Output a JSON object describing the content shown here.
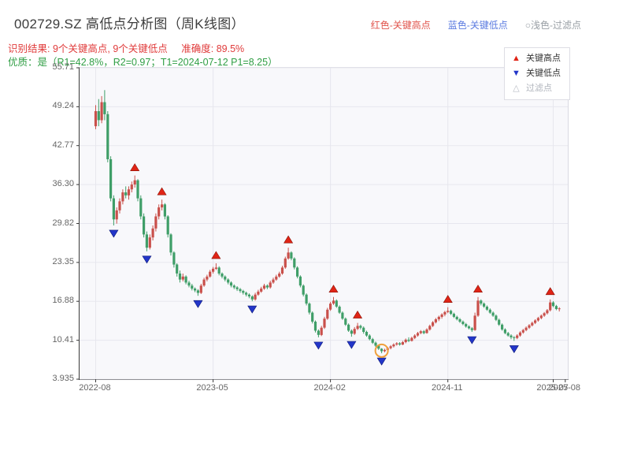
{
  "header": {
    "title": "002729.SZ 高低点分析图（周K线图）",
    "legend_top": [
      {
        "label": "红色-关键高点"
      },
      {
        "label": "蓝色-关键低点"
      },
      {
        "label": "○浅色-过滤点"
      }
    ],
    "result_text": "识别结果: 9个关键高点, 9个关键低点",
    "accuracy_text": "准确度: 89.5%",
    "quality_line": "优质：是（R1=42.8%，R2=0.97；T1=2024-07-12 P1=8.25）"
  },
  "chart_data": {
    "type": "candlestick",
    "title": "002729.SZ 高低点分析图（周K线图）",
    "xlabel": "",
    "ylabel": "",
    "ylim": [
      3.935,
      55.71
    ],
    "grid": true,
    "legend_position": "top-right",
    "y_ticks": [
      {
        "label": "55.71",
        "value": 55.71
      },
      {
        "label": "49.24",
        "value": 49.24
      },
      {
        "label": "42.77",
        "value": 42.77
      },
      {
        "label": "36.30",
        "value": 36.3
      },
      {
        "label": "29.82",
        "value": 29.82
      },
      {
        "label": "23.35",
        "value": 23.35
      },
      {
        "label": "16.88",
        "value": 16.88
      },
      {
        "label": "10.41",
        "value": 10.41
      },
      {
        "label": "3.935",
        "value": 3.935
      }
    ],
    "x_ticks": [
      {
        "label": "2022-08",
        "week": 0,
        "grid": true
      },
      {
        "label": "2023-05",
        "week": 39,
        "grid": true
      },
      {
        "label": "2024-02",
        "week": 78,
        "grid": true
      },
      {
        "label": "2024-11",
        "week": 117,
        "grid": true
      },
      {
        "label": "2025-07",
        "week": 152,
        "grid": true
      },
      {
        "label": "2025-08",
        "week": 156,
        "grid": false
      }
    ],
    "x_start_frac": 0.033,
    "x_step_frac": 0.006166,
    "candles": [
      [
        46,
        49.5,
        45.5,
        48.5
      ],
      [
        48.5,
        50.5,
        46,
        47
      ],
      [
        47,
        51,
        46.5,
        50
      ],
      [
        50,
        52,
        47,
        48
      ],
      [
        48,
        48.5,
        40,
        40.5
      ],
      [
        40.5,
        41,
        33.5,
        34
      ],
      [
        34,
        34.5,
        29.5,
        30.5
      ],
      [
        30.5,
        32.5,
        29.8,
        32
      ],
      [
        32,
        34,
        31.5,
        33.5
      ],
      [
        33.5,
        35.5,
        33,
        35
      ],
      [
        35,
        36,
        34,
        34.5
      ],
      [
        34.5,
        36,
        33.8,
        35.5
      ],
      [
        35.5,
        36.8,
        35,
        36.3
      ],
      [
        36.3,
        37.8,
        35.8,
        37
      ],
      [
        37,
        37.2,
        33.5,
        34
      ],
      [
        34,
        34.5,
        30.5,
        31
      ],
      [
        31,
        31.5,
        27.5,
        28
      ],
      [
        28,
        28.5,
        25.2,
        25.8
      ],
      [
        25.8,
        28,
        25.5,
        27.5
      ],
      [
        27.5,
        29.5,
        27,
        29
      ],
      [
        29,
        31.5,
        28.5,
        31
      ],
      [
        31,
        33,
        30.5,
        32.5
      ],
      [
        32.5,
        33.8,
        32,
        33
      ],
      [
        33,
        33.2,
        30.5,
        31
      ],
      [
        31,
        31.2,
        27.5,
        28
      ],
      [
        28,
        28.2,
        24.5,
        25
      ],
      [
        25,
        25.2,
        22.5,
        23
      ],
      [
        23,
        23.2,
        21,
        21.5
      ],
      [
        21.5,
        22,
        20,
        20.5
      ],
      [
        20.5,
        21.5,
        20.2,
        21
      ],
      [
        21,
        21.2,
        19.7,
        20
      ],
      [
        20,
        20.3,
        19.2,
        19.5
      ],
      [
        19.5,
        19.8,
        18.7,
        19
      ],
      [
        19,
        19.2,
        18.4,
        18.7
      ],
      [
        18.7,
        18.9,
        17.8,
        18.3
      ],
      [
        18.3,
        19.8,
        18.1,
        19.5
      ],
      [
        19.5,
        20.8,
        19.3,
        20.5
      ],
      [
        20.5,
        21.3,
        20.2,
        21
      ],
      [
        21,
        22.1,
        20.8,
        21.8
      ],
      [
        21.8,
        22.6,
        21.5,
        22.3
      ],
      [
        22.3,
        23.2,
        22.1,
        22.5
      ],
      [
        22.5,
        22.7,
        21.2,
        21.5
      ],
      [
        21.5,
        21.7,
        20.7,
        21
      ],
      [
        21,
        21.2,
        20.2,
        20.5
      ],
      [
        20.5,
        20.7,
        19.7,
        20
      ],
      [
        20,
        20.2,
        19.2,
        19.5
      ],
      [
        19.5,
        19.7,
        18.9,
        19.2
      ],
      [
        19.2,
        19.4,
        18.6,
        18.9
      ],
      [
        18.9,
        19.1,
        18.3,
        18.6
      ],
      [
        18.6,
        18.8,
        18,
        18.3
      ],
      [
        18.3,
        18.5,
        17.7,
        18
      ],
      [
        18,
        18.2,
        17.4,
        17.7
      ],
      [
        17.7,
        17.9,
        16.9,
        17.2
      ],
      [
        17.2,
        18.3,
        17,
        18
      ],
      [
        18,
        18.8,
        17.8,
        18.5
      ],
      [
        18.5,
        19.3,
        18.3,
        19
      ],
      [
        19,
        19.8,
        18.8,
        19.5
      ],
      [
        19.5,
        19.7,
        18.9,
        19.2
      ],
      [
        19.2,
        20.3,
        19,
        20
      ],
      [
        20,
        20.8,
        19.8,
        20.5
      ],
      [
        20.5,
        21.3,
        20.3,
        21
      ],
      [
        21,
        21.8,
        20.8,
        21.5
      ],
      [
        21.5,
        22.8,
        21.3,
        22.5
      ],
      [
        22.5,
        24.3,
        22.3,
        24
      ],
      [
        24,
        25.8,
        23.8,
        25
      ],
      [
        25,
        25.2,
        23.7,
        24
      ],
      [
        24,
        24.2,
        22.2,
        22.5
      ],
      [
        22.5,
        22.7,
        20.7,
        21
      ],
      [
        21,
        21.2,
        19.2,
        19.5
      ],
      [
        19.5,
        19.7,
        17.7,
        18
      ],
      [
        18,
        18.2,
        16.2,
        16.5
      ],
      [
        16.5,
        16.7,
        14.7,
        15
      ],
      [
        15,
        15.2,
        13.2,
        13.5
      ],
      [
        13.5,
        13.7,
        11.7,
        12
      ],
      [
        12,
        12.2,
        10.9,
        11.3
      ],
      [
        11.3,
        12.8,
        11.1,
        12.5
      ],
      [
        12.5,
        14.3,
        12.3,
        14
      ],
      [
        14,
        15.8,
        13.8,
        15.5
      ],
      [
        15.5,
        16.8,
        15.3,
        16.5
      ],
      [
        16.5,
        17.6,
        16.3,
        17
      ],
      [
        17,
        17.2,
        15.8,
        16
      ],
      [
        16,
        16.2,
        14.8,
        15
      ],
      [
        15,
        15.2,
        13.8,
        14
      ],
      [
        14,
        14.2,
        12.8,
        13
      ],
      [
        13,
        13.2,
        11.8,
        12
      ],
      [
        12,
        12.2,
        11,
        11.5
      ],
      [
        11.5,
        12.6,
        11.3,
        12.3
      ],
      [
        12.3,
        13.3,
        12.1,
        12.8
      ],
      [
        12.8,
        13,
        12.2,
        12.5
      ],
      [
        12.5,
        12.7,
        11.5,
        11.8
      ],
      [
        11.8,
        12,
        11,
        11.2
      ],
      [
        11.2,
        11.4,
        10.4,
        10.6
      ],
      [
        10.6,
        10.8,
        9.8,
        10
      ],
      [
        10,
        10.2,
        9.3,
        9.5
      ],
      [
        9.5,
        9.7,
        8.8,
        9
      ],
      [
        9,
        9.1,
        8.25,
        8.6
      ],
      [
        8.6,
        9,
        8.4,
        8.8
      ],
      [
        8.8,
        9.3,
        8.6,
        9.1
      ],
      [
        9.1,
        9.6,
        8.9,
        9.4
      ],
      [
        9.4,
        9.9,
        9.2,
        9.7
      ],
      [
        9.7,
        10.1,
        9.5,
        9.9
      ],
      [
        9.9,
        10.1,
        9.5,
        9.7
      ],
      [
        9.7,
        10.3,
        9.6,
        10.1
      ],
      [
        10.1,
        10.7,
        9.9,
        10.5
      ],
      [
        10.5,
        10.9,
        10.1,
        10.3
      ],
      [
        10.3,
        11,
        10.2,
        10.8
      ],
      [
        10.8,
        11.4,
        10.6,
        11.2
      ],
      [
        11.2,
        11.8,
        11,
        11.6
      ],
      [
        11.6,
        12.1,
        11.4,
        11.9
      ],
      [
        11.9,
        12.1,
        11.4,
        11.6
      ],
      [
        11.6,
        12.4,
        11.5,
        12.2
      ],
      [
        12.2,
        13,
        12,
        12.8
      ],
      [
        12.8,
        13.6,
        12.6,
        13.4
      ],
      [
        13.4,
        14.1,
        13.2,
        13.9
      ],
      [
        13.9,
        14.5,
        13.6,
        14.3
      ],
      [
        14.3,
        14.9,
        14,
        14.7
      ],
      [
        14.7,
        15.3,
        14.4,
        15.1
      ],
      [
        15.1,
        15.9,
        14.9,
        15.3
      ],
      [
        15.3,
        15.5,
        14.6,
        14.8
      ],
      [
        14.8,
        15,
        14.1,
        14.3
      ],
      [
        14.3,
        14.5,
        13.7,
        13.9
      ],
      [
        13.9,
        14.1,
        13.3,
        13.5
      ],
      [
        13.5,
        13.7,
        12.9,
        13.1
      ],
      [
        13.1,
        13.3,
        12.5,
        12.7
      ],
      [
        12.7,
        12.9,
        12.2,
        12.4
      ],
      [
        12.4,
        12.6,
        11.8,
        12.1
      ],
      [
        12.1,
        15,
        12,
        14.5
      ],
      [
        14.5,
        17.6,
        14.3,
        17
      ],
      [
        17,
        17.2,
        16.2,
        16.5
      ],
      [
        16.5,
        16.7,
        15.8,
        16
      ],
      [
        16,
        16.2,
        15.3,
        15.5
      ],
      [
        15.5,
        15.7,
        14.8,
        15
      ],
      [
        15,
        15.2,
        14.3,
        14.5
      ],
      [
        14.5,
        14.7,
        13.6,
        13.8
      ],
      [
        13.8,
        14,
        12.8,
        13
      ],
      [
        13,
        13.2,
        12,
        12.2
      ],
      [
        12.2,
        12.4,
        11.4,
        11.6
      ],
      [
        11.6,
        11.8,
        11,
        11.2
      ],
      [
        11.2,
        11.4,
        10.6,
        10.9
      ],
      [
        10.9,
        11.1,
        10.3,
        10.8
      ],
      [
        10.8,
        11.4,
        10.6,
        11.2
      ],
      [
        11.2,
        11.9,
        11,
        11.7
      ],
      [
        11.7,
        12.3,
        11.5,
        12.1
      ],
      [
        12.1,
        12.7,
        11.9,
        12.5
      ],
      [
        12.5,
        13.1,
        12.3,
        12.9
      ],
      [
        12.9,
        13.5,
        12.7,
        13.3
      ],
      [
        13.3,
        13.9,
        13.1,
        13.7
      ],
      [
        13.7,
        14.3,
        13.5,
        14.1
      ],
      [
        14.1,
        14.7,
        13.9,
        14.5
      ],
      [
        14.5,
        15.1,
        14.3,
        14.9
      ],
      [
        14.9,
        15.6,
        14.7,
        15.4
      ],
      [
        15.4,
        17.2,
        15.2,
        16.7
      ],
      [
        16.7,
        16.9,
        15.9,
        16.1
      ],
      [
        16.1,
        16.3,
        15.4,
        15.6
      ],
      [
        15.6,
        15.9,
        15.2,
        15.7
      ]
    ],
    "key_high_indices": [
      13,
      22,
      40,
      64,
      79,
      87,
      117,
      127,
      151
    ],
    "key_low_indices": [
      6,
      17,
      34,
      52,
      74,
      85,
      95,
      125,
      139
    ],
    "filter_point_indices": [
      95
    ],
    "legend_items": [
      {
        "label": "关键高点",
        "glyph": "▲",
        "marker": "up-triangle"
      },
      {
        "label": "关键低点",
        "glyph": "▼",
        "marker": "down-triangle"
      },
      {
        "label": "过滤点",
        "glyph": "△",
        "marker": "open-triangle"
      }
    ],
    "colors": {
      "up": "#c9504b",
      "down": "#3f9e68",
      "key_high": "#e02416",
      "key_low": "#2336c9",
      "filter": "#f0a03c",
      "grid": "#e7e7ee",
      "axis": "#3a3a3a",
      "plot_bg": "#f8f8fb",
      "text_red": "#e03b3b",
      "text_green": "#2f9e44"
    }
  }
}
